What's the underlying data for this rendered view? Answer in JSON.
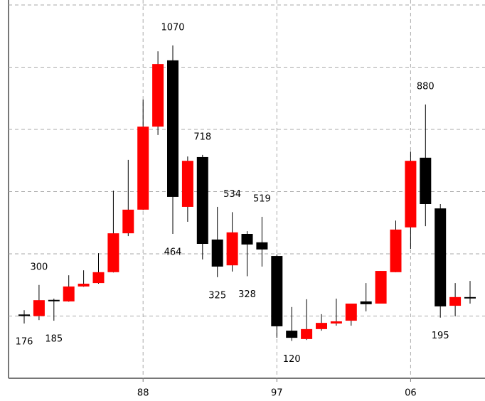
{
  "chart_data": {
    "type": "candlestick",
    "categories": [
      null,
      null,
      null,
      null,
      null,
      null,
      null,
      null,
      "88",
      null,
      null,
      null,
      null,
      null,
      null,
      null,
      null,
      "97",
      null,
      null,
      null,
      null,
      null,
      null,
      null,
      null,
      "06",
      null,
      null,
      null,
      null
    ],
    "open": [
      205,
      200,
      252,
      247,
      295,
      306,
      341,
      466,
      542,
      809,
      1022,
      551,
      711,
      446,
      363,
      464,
      437,
      393,
      153,
      126,
      158,
      176,
      185,
      247,
      240,
      341,
      485,
      709,
      546,
      233,
      261
    ],
    "close": [
      200,
      251,
      248,
      295,
      304,
      341,
      466,
      542,
      809,
      1010,
      583,
      699,
      432,
      359,
      469,
      430,
      414,
      167,
      130,
      158,
      178,
      183,
      240,
      238,
      345,
      478,
      699,
      560,
      231,
      261,
      258
    ],
    "high": [
      219,
      300,
      256,
      331,
      347,
      402,
      603,
      702,
      896,
      1051,
      1070,
      713,
      718,
      551,
      534,
      473,
      519,
      398,
      229,
      254,
      206,
      256,
      240,
      306,
      345,
      507,
      729,
      880,
      560,
      306,
      313
    ],
    "low": [
      176,
      187,
      185,
      246,
      294,
      304,
      340,
      457,
      541,
      782,
      464,
      503,
      382,
      325,
      343,
      328,
      359,
      130,
      120,
      123,
      153,
      169,
      169,
      215,
      240,
      341,
      416,
      489,
      195,
      199,
      240
    ],
    "labeled_highs": [
      1,
      10,
      12,
      14,
      16,
      27
    ],
    "labeled_lows": [
      0,
      2,
      10,
      13,
      15,
      18,
      28
    ],
    "up_color": "#ff0000",
    "down_color": "#000000",
    "ylim": [
      0,
      1200
    ],
    "yticks": [
      0,
      200,
      400,
      600,
      800,
      1000,
      1200
    ],
    "grid": true
  }
}
